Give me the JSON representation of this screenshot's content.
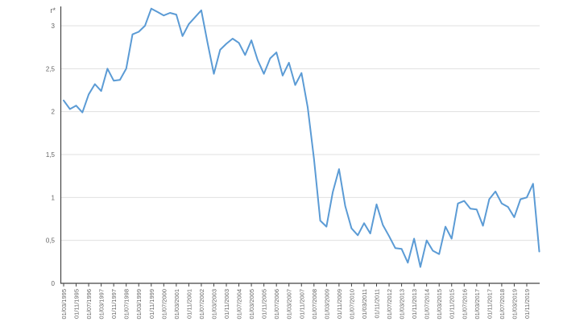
{
  "chart_data": {
    "type": "line",
    "title": "",
    "y_axis_label": "r*",
    "series_name": "r*",
    "legend": "none",
    "grid": "horizontal-only",
    "x_label_rotation": -90,
    "label_stride": 2,
    "ylim": [
      0,
      3.23
    ],
    "y_tick_labels": [
      "3",
      "2,5",
      "2",
      "1,5",
      "1",
      "0,5",
      "0"
    ],
    "y_tick_values": [
      3,
      2.5,
      2,
      1.5,
      1,
      0.5,
      0
    ],
    "x_labels": [
      "01/03/1995",
      "01/11/1995",
      "01/07/1996",
      "01/03/1997",
      "01/11/1997",
      "01/07/1998",
      "01/03/1999",
      "01/11/1999",
      "01/07/2000",
      "01/03/2001",
      "01/11/2001",
      "01/07/2002",
      "01/03/2003",
      "01/11/2003",
      "01/07/2004",
      "01/03/2005",
      "01/11/2005",
      "01/07/2006",
      "01/03/2007",
      "01/11/2007",
      "01/07/2008",
      "01/03/2009",
      "01/11/2009",
      "01/07/2010",
      "01/03/2011",
      "01/11/2011",
      "01/07/2012",
      "01/03/2013",
      "01/11/2013",
      "01/07/2014",
      "01/03/2015",
      "01/11/2015",
      "01/07/2016",
      "01/03/2017",
      "01/11/2017",
      "01/07/2018",
      "01/03/2019",
      "01/11/2019"
    ],
    "values": [
      2.13,
      2.03,
      2.07,
      1.99,
      2.2,
      2.32,
      2.24,
      2.5,
      2.36,
      2.37,
      2.5,
      2.9,
      2.93,
      3.0,
      3.2,
      3.16,
      3.12,
      3.15,
      3.13,
      2.88,
      3.02,
      3.1,
      3.18,
      2.8,
      2.44,
      2.72,
      2.79,
      2.85,
      2.8,
      2.66,
      2.83,
      2.6,
      2.44,
      2.62,
      2.69,
      2.42,
      2.57,
      2.31,
      2.45,
      2.05,
      1.45,
      0.73,
      0.66,
      1.06,
      1.33,
      0.9,
      0.64,
      0.56,
      0.7,
      0.58,
      0.92,
      0.68,
      0.55,
      0.41,
      0.4,
      0.24,
      0.52,
      0.19,
      0.5,
      0.38,
      0.34,
      0.66,
      0.52,
      0.93,
      0.96,
      0.87,
      0.86,
      0.67,
      0.98,
      1.07,
      0.93,
      0.89,
      0.77,
      0.98,
      1.0,
      1.16,
      0.37
    ],
    "colors": {
      "line": "#5B9BD5",
      "grid": "#E0E0E0",
      "axis": "#454545",
      "labels": "#636363",
      "background": "#ffffff"
    }
  }
}
